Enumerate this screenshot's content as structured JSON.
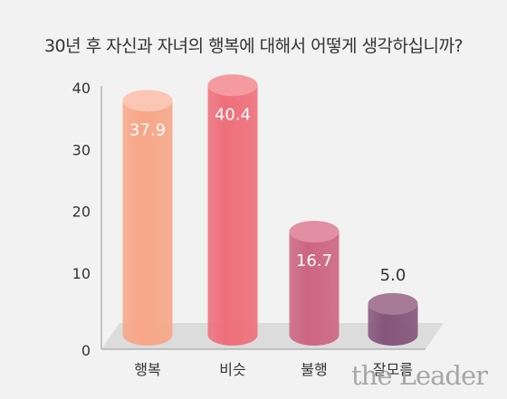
{
  "chart_data": {
    "type": "bar",
    "title": "30년 후 자신과 자녀의 행복에 대해서 어떻게 생각하십니까?",
    "categories": [
      "행복",
      "비슷",
      "불행",
      "잘모름"
    ],
    "values": [
      37.9,
      40.4,
      16.7,
      5.0
    ],
    "value_labels": [
      "37.9",
      "40.4",
      "16.7",
      "5.0"
    ],
    "ylim": [
      0,
      40
    ],
    "yticks": [
      0,
      10,
      20,
      30,
      40
    ],
    "colors": [
      "#f7a688",
      "#ee6f7a",
      "#cd6582",
      "#85547a"
    ],
    "cap_colors": [
      "#fcc6b4",
      "#f59a9e",
      "#e28ea3",
      "#a77b98"
    ],
    "xlabel": "",
    "ylabel": "",
    "grid": false,
    "legend": "none"
  },
  "watermark": "the Leader"
}
